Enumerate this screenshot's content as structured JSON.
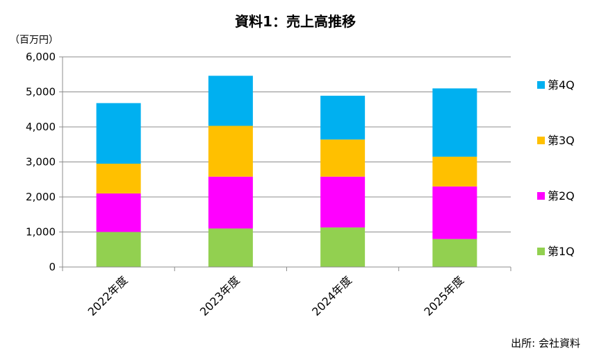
{
  "chart_data": {
    "type": "bar",
    "stacked": true,
    "title": "資料1：売上高推移",
    "unit_label": "（百万円）",
    "source": "出所: 会社資料",
    "categories": [
      "2022年度",
      "2023年度",
      "2024年度",
      "2025年度"
    ],
    "series": [
      {
        "name": "第1Q",
        "color": "#92d050",
        "values": [
          1000,
          1100,
          1130,
          800
        ]
      },
      {
        "name": "第2Q",
        "color": "#ff00ff",
        "values": [
          1100,
          1480,
          1450,
          1500
        ]
      },
      {
        "name": "第3Q",
        "color": "#ffc000",
        "values": [
          850,
          1450,
          1060,
          850
        ]
      },
      {
        "name": "第4Q",
        "color": "#00b0f0",
        "values": [
          1730,
          1430,
          1250,
          1950
        ]
      }
    ],
    "ylim": [
      0,
      6000
    ],
    "yticks": [
      "0",
      "1,000",
      "2,000",
      "3,000",
      "4,000",
      "5,000",
      "6,000"
    ],
    "grid": true,
    "legend_position": "right"
  }
}
